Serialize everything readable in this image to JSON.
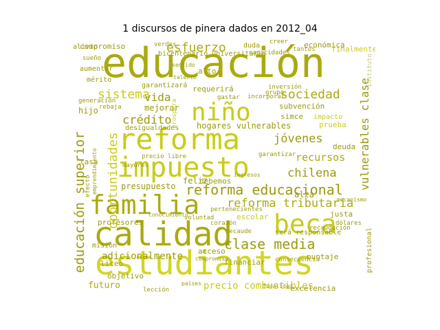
{
  "title": "1 discursos de pinera dados en 2012_04",
  "palette": {
    "dark": "#9a9a0c",
    "olive": "#aaaa10",
    "yellow": "#c8cc18",
    "bright": "#d2d61e",
    "light": "#c6c68a"
  },
  "words": [
    {
      "text": "educación",
      "c": "olive"
    },
    {
      "text": "estudiantes",
      "c": "bright"
    },
    {
      "text": "calidad",
      "c": "olive"
    },
    {
      "text": "reforma",
      "c": "yellow"
    },
    {
      "text": "impuesto",
      "c": "yellow"
    },
    {
      "text": "familia",
      "c": "olive"
    },
    {
      "text": "beca",
      "c": "yellow"
    },
    {
      "text": "niño",
      "c": "yellow"
    },
    {
      "text": "reforma educacional",
      "c": "dark"
    },
    {
      "text": "clase media",
      "c": "dark"
    },
    {
      "text": "sociedad",
      "c": "olive"
    },
    {
      "text": "reforma tributaria",
      "c": "olive"
    },
    {
      "text": "educación superior",
      "c": "dark"
    },
    {
      "text": "oportunidades",
      "c": "yellow"
    },
    {
      "text": "vulnerables clase",
      "c": "dark"
    },
    {
      "text": "esfuerzo",
      "c": "olive"
    },
    {
      "text": "sistema",
      "c": "yellow"
    },
    {
      "text": "vida",
      "c": "dark"
    },
    {
      "text": "crédito",
      "c": "dark"
    },
    {
      "text": "chilena",
      "c": "dark"
    },
    {
      "text": "jóvenes",
      "c": "dark"
    },
    {
      "text": "recursos",
      "c": "olive"
    },
    {
      "text": "hogares vulnerables",
      "c": "dark"
    },
    {
      "text": "adicionalmente",
      "c": "dark"
    },
    {
      "text": "presupuesto",
      "c": "dark"
    },
    {
      "text": "futuro",
      "c": "olive"
    },
    {
      "text": "precio combustibles",
      "c": "yellow"
    },
    {
      "text": "liceo",
      "c": "dark"
    },
    {
      "text": "profesores",
      "c": "dark"
    },
    {
      "text": "financiar",
      "c": "dark"
    },
    {
      "text": "excelencia",
      "c": "dark"
    },
    {
      "text": "subvención",
      "c": "dark"
    },
    {
      "text": "económica",
      "c": "dark"
    },
    {
      "text": "mejorar",
      "c": "dark"
    },
    {
      "text": "hijo",
      "c": "dark"
    },
    {
      "text": "escolar",
      "c": "yellow"
    },
    {
      "text": "alza",
      "c": "dark"
    },
    {
      "text": "justa",
      "c": "dark"
    },
    {
      "text": "deuda",
      "c": "dark"
    },
    {
      "text": "tasa",
      "c": "dark"
    },
    {
      "text": "acceso",
      "c": "dark"
    },
    {
      "text": "puntaje",
      "c": "dark"
    },
    {
      "text": "objetivo",
      "c": "dark"
    },
    {
      "text": "profesional",
      "c": "dark"
    },
    {
      "text": "prueba",
      "c": "yellow"
    },
    {
      "text": "feliz",
      "c": "dark"
    },
    {
      "text": "debemos",
      "c": "dark"
    },
    {
      "text": "requerirá",
      "c": "dark"
    },
    {
      "text": "compromiso",
      "c": "dark"
    },
    {
      "text": "bicentenario universitaria",
      "c": "dark"
    },
    {
      "text": "alto",
      "c": "dark"
    },
    {
      "text": "garantizará",
      "c": "dark"
    },
    {
      "text": "duda",
      "c": "dark"
    },
    {
      "text": "simce",
      "c": "dark"
    },
    {
      "text": "impacto",
      "c": "yellow"
    },
    {
      "text": "será responsable",
      "c": "dark"
    },
    {
      "text": "desigualdades",
      "c": "dark"
    },
    {
      "text": "precio libre",
      "c": "dark"
    },
    {
      "text": "pertenecientes",
      "c": "dark"
    },
    {
      "text": "misión",
      "c": "dark"
    },
    {
      "text": "verdes",
      "c": "dark"
    },
    {
      "text": "alivio",
      "c": "dark"
    },
    {
      "text": "capacidades",
      "c": "dark"
    },
    {
      "text": "creer",
      "c": "dark"
    },
    {
      "text": "finalmente",
      "c": "yellow"
    },
    {
      "text": "tantos",
      "c": "dark"
    },
    {
      "text": "instituto",
      "c": "light"
    },
    {
      "text": "corazón",
      "c": "dark"
    },
    {
      "text": "inversión",
      "c": "dark"
    },
    {
      "text": "gastar",
      "c": "dark"
    },
    {
      "text": "incorporar",
      "c": "dark"
    },
    {
      "text": "aumentar",
      "c": "dark"
    },
    {
      "text": "sueño",
      "c": "dark"
    },
    {
      "text": "mérito",
      "c": "dark"
    },
    {
      "text": "generación",
      "c": "dark"
    },
    {
      "text": "grupo",
      "c": "dark"
    },
    {
      "text": "mayores",
      "c": "dark"
    },
    {
      "text": "efecto",
      "c": "dark"
    },
    {
      "text": "garantizar",
      "c": "dark"
    },
    {
      "text": "recaudación",
      "c": "dark"
    },
    {
      "text": "conocimiento",
      "c": "dark"
    },
    {
      "text": "voluntad",
      "c": "dark"
    },
    {
      "text": "recaude",
      "c": "dark"
    },
    {
      "text": "consecuencia",
      "c": "dark"
    },
    {
      "text": "compromiso",
      "c": "dark"
    },
    {
      "text": "dólares",
      "c": "dark"
    },
    {
      "text": "mecanismo",
      "c": "dark"
    },
    {
      "text": "países",
      "c": "dark"
    },
    {
      "text": "lección",
      "c": "dark"
    },
    {
      "text": "finalidad",
      "c": "dark"
    },
    {
      "text": "ingresos",
      "c": "dark"
    },
    {
      "text": "rebaja",
      "c": "dark"
    },
    {
      "text": "emprendimiento",
      "c": "dark"
    },
    {
      "text": "prospera",
      "c": "yellow"
    },
    {
      "text": "sentido",
      "c": "dark"
    },
    {
      "text": "talento",
      "c": "dark"
    }
  ]
}
